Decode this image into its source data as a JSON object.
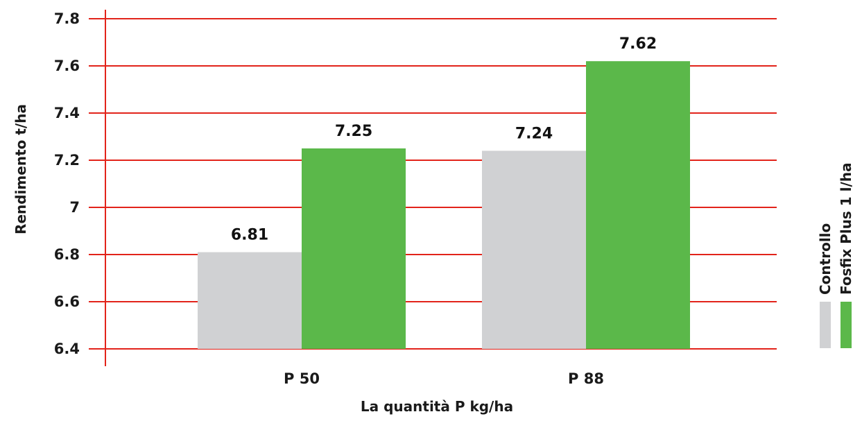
{
  "chart_data": {
    "type": "bar",
    "xlabel": "La quantità P kg/ha",
    "ylabel": "Rendimento t/ha",
    "ylim": [
      6.4,
      7.8
    ],
    "yticks": [
      6.4,
      6.6,
      6.8,
      7,
      7.2,
      7.4,
      7.6,
      7.8
    ],
    "ytick_labels": [
      "6.4",
      "6.6",
      "6.8",
      "7",
      "7.2",
      "7.4",
      "7.6",
      "7.8"
    ],
    "categories": [
      "P 50",
      "P 88"
    ],
    "series": [
      {
        "name": "Controllo",
        "values": [
          6.81,
          7.24
        ],
        "labels": [
          "6.81",
          "7.24"
        ],
        "color": "#d0d1d3"
      },
      {
        "name": "Fosfix Plus 1 l/ha",
        "values": [
          7.25,
          7.62
        ],
        "labels": [
          "7.25",
          "7.62"
        ],
        "color": "#5bb84a"
      }
    ],
    "grid": true,
    "grid_color": "#e2231a",
    "legend_position": "right"
  }
}
